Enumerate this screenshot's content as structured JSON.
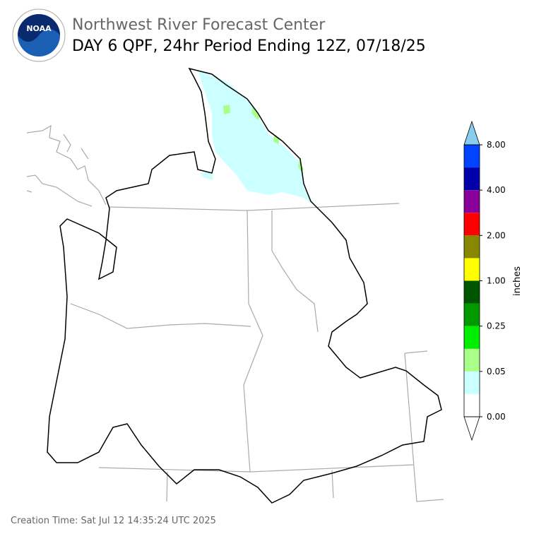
{
  "header": {
    "logo_text": "NOAA",
    "title": "Northwest River Forecast Center",
    "subtitle": "DAY 6 QPF, 24hr Period Ending 12Z, 07/18/25"
  },
  "colorbar": {
    "label": "inches",
    "colors": [
      "#ffffff",
      "#ccffff",
      "#aaff88",
      "#00ee00",
      "#009900",
      "#005500",
      "#ffff00",
      "#888800",
      "#ff0000",
      "#880099",
      "#0000aa",
      "#0044ff"
    ],
    "over_color": "#88ccee",
    "under_color": "#ffffff",
    "ticks": [
      {
        "value": 0,
        "label": "0.00"
      },
      {
        "value": 0.05,
        "label": "0.05"
      },
      {
        "value": 0.25,
        "label": "0.25"
      },
      {
        "value": 1,
        "label": "1.00"
      },
      {
        "value": 2,
        "label": "2.00"
      },
      {
        "value": 4,
        "label": "4.00"
      },
      {
        "value": 8,
        "label": "8.00"
      }
    ]
  },
  "footer": {
    "creation_time": "Creation Time: Sat Jul 12 14:35:24 UTC 2025"
  }
}
